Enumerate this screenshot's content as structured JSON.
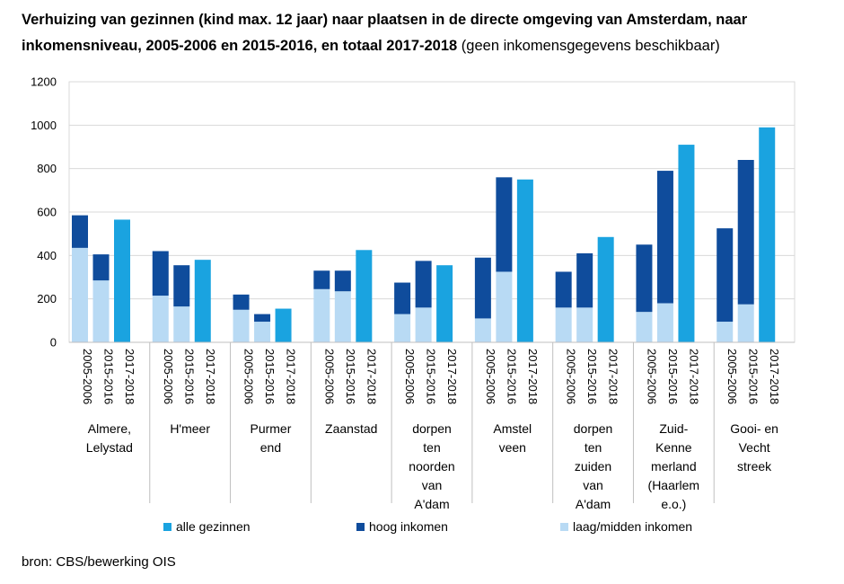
{
  "title_bold": "Verhuizing van gezinnen (kind max. 12 jaar) naar plaatsen in de directe omgeving van Amsterdam, naar inkomensniveau, 2005-2006 en 2015-2016, en totaal 2017-2018",
  "title_normal": "(geen inkomensgegevens beschikbaar)",
  "source": "bron: CBS/bewerking OIS",
  "colors": {
    "alle_gezinnen": "#1aa3e0",
    "hoog_inkomen": "#0f4c9c",
    "laag_midden_inkomen": "#b8daf4",
    "grid": "#d9d9d9",
    "axis": "#bfbfbf"
  },
  "chart_data": {
    "type": "bar",
    "stacked": true,
    "title": "Verhuizing van gezinnen (kind max. 12 jaar) naar plaatsen in de directe omgeving van Amsterdam, naar inkomensniveau, 2005-2006 en 2015-2016, en totaal 2017-2018 (geen inkomensgegevens beschikbaar)",
    "ylim": [
      0,
      1200
    ],
    "yticks": [
      "0",
      "200",
      "400",
      "600",
      "800",
      "1000",
      "1200"
    ],
    "grid": true,
    "legend_position": "bottom",
    "legend": [
      {
        "key": "alle_gezinnen",
        "label": "alle gezinnen"
      },
      {
        "key": "hoog_inkomen",
        "label": "hoog inkomen"
      },
      {
        "key": "laag_midden_inkomen",
        "label": "laag/midden inkomen"
      }
    ],
    "periods": [
      "2005-2006",
      "2015-2016",
      "2017-2018"
    ],
    "groups": [
      {
        "label": [
          "Almere,",
          "Lelystad"
        ],
        "laag_2005": 435,
        "hoog_2005": 150,
        "laag_2015": 285,
        "hoog_2015": 120,
        "alle_2017": 565
      },
      {
        "label": [
          "H'meer"
        ],
        "laag_2005": 215,
        "hoog_2005": 205,
        "laag_2015": 165,
        "hoog_2015": 190,
        "alle_2017": 380
      },
      {
        "label": [
          "Purmer",
          "end"
        ],
        "laag_2005": 150,
        "hoog_2005": 70,
        "laag_2015": 95,
        "hoog_2015": 35,
        "alle_2017": 155
      },
      {
        "label": [
          "Zaanstad"
        ],
        "laag_2005": 245,
        "hoog_2005": 85,
        "laag_2015": 235,
        "hoog_2015": 95,
        "alle_2017": 425
      },
      {
        "label": [
          "dorpen",
          "ten",
          "noorden",
          "van",
          "A'dam"
        ],
        "laag_2005": 130,
        "hoog_2005": 145,
        "laag_2015": 160,
        "hoog_2015": 215,
        "alle_2017": 355
      },
      {
        "label": [
          "Amstel",
          "veen"
        ],
        "laag_2005": 110,
        "hoog_2005": 280,
        "laag_2015": 325,
        "hoog_2015": 435,
        "alle_2017": 750
      },
      {
        "label": [
          "dorpen",
          "ten",
          "zuiden",
          "van",
          "A'dam"
        ],
        "laag_2005": 160,
        "hoog_2005": 165,
        "laag_2015": 160,
        "hoog_2015": 250,
        "alle_2017": 485
      },
      {
        "label": [
          "Zuid-",
          "Kenne",
          "merland",
          "(Haarlem",
          "e.o.)"
        ],
        "laag_2005": 140,
        "hoog_2005": 310,
        "laag_2015": 180,
        "hoog_2015": 610,
        "alle_2017": 910
      },
      {
        "label": [
          "Gooi- en",
          "Vecht",
          "streek"
        ],
        "laag_2005": 95,
        "hoog_2005": 430,
        "laag_2015": 175,
        "hoog_2015": 665,
        "alle_2017": 990
      }
    ]
  }
}
